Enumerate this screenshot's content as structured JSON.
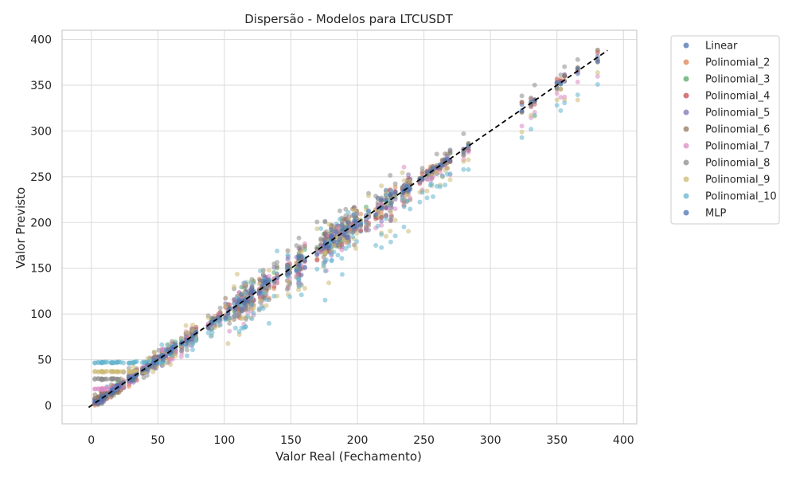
{
  "chart_data": {
    "type": "scatter",
    "title": "Dispersão - Modelos para LTCUSDT",
    "xlabel": "Valor Real (Fechamento)",
    "ylabel": "Valor Previsto",
    "xlim": [
      -22,
      410
    ],
    "ylim": [
      -20,
      410
    ],
    "xticks": [
      0,
      50,
      100,
      150,
      200,
      250,
      300,
      350,
      400
    ],
    "yticks": [
      0,
      50,
      100,
      150,
      200,
      250,
      300,
      350,
      400
    ],
    "grid": true,
    "legend_position": "outside-right",
    "reference_line": {
      "style": "dashed",
      "color": "#000000",
      "from": [
        -2,
        -2
      ],
      "to": [
        388,
        388
      ]
    },
    "series": [
      {
        "name": "Linear",
        "color": "#4c72b0",
        "model": {
          "floor": 0,
          "noise": 5,
          "slope": 1.0
        }
      },
      {
        "name": "Polinomial_2",
        "color": "#dd8452",
        "model": {
          "floor": 0,
          "noise": 6,
          "slope": 1.0
        }
      },
      {
        "name": "Polinomial_3",
        "color": "#55a868",
        "model": {
          "floor": 0,
          "noise": 6,
          "slope": 1.0
        }
      },
      {
        "name": "Polinomial_4",
        "color": "#c44e52",
        "model": {
          "floor": 0,
          "noise": 7,
          "slope": 1.0
        }
      },
      {
        "name": "Polinomial_5",
        "color": "#8172b3",
        "model": {
          "floor": 0,
          "noise": 8,
          "slope": 1.0
        }
      },
      {
        "name": "Polinomial_6",
        "color": "#937860",
        "model": {
          "floor": 8,
          "noise": 10,
          "slope": 1.0
        }
      },
      {
        "name": "Polinomial_7",
        "color": "#da8bc3",
        "model": {
          "floor": 18,
          "noise": 10,
          "slope": 0.97
        }
      },
      {
        "name": "Polinomial_8",
        "color": "#8c8c8c",
        "model": {
          "floor": 29,
          "noise": 12,
          "slope": 1.02
        }
      },
      {
        "name": "Polinomial_9",
        "color": "#ccb974",
        "model": {
          "floor": 37,
          "noise": 14,
          "slope": 0.96
        }
      },
      {
        "name": "Polinomial_10",
        "color": "#64b5cd",
        "model": {
          "floor": 47,
          "noise": 16,
          "slope": 0.93
        }
      },
      {
        "name": "MLP",
        "color": "#4c72b0",
        "model": {
          "floor": 0,
          "noise": 4,
          "slope": 1.0
        }
      }
    ]
  }
}
